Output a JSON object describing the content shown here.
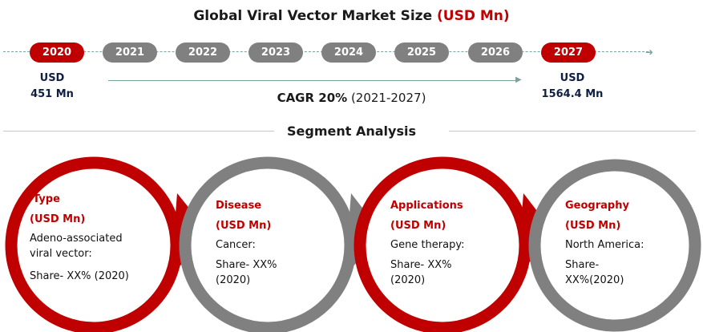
{
  "header": {
    "title_main": "Global Viral Vector Market Size",
    "title_unit": "(USD Mn)"
  },
  "timeline": {
    "years": [
      {
        "label": "2020",
        "highlight": true
      },
      {
        "label": "2021",
        "highlight": false
      },
      {
        "label": "2022",
        "highlight": false
      },
      {
        "label": "2023",
        "highlight": false
      },
      {
        "label": "2024",
        "highlight": false
      },
      {
        "label": "2025",
        "highlight": false
      },
      {
        "label": "2026",
        "highlight": false
      },
      {
        "label": "2027",
        "highlight": true
      }
    ],
    "start_value": {
      "line1": "USD",
      "line2": "451 Mn"
    },
    "end_value": {
      "line1": "USD",
      "line2": "1564.4 Mn"
    },
    "cagr_label": "CAGR 20%",
    "cagr_period": "(2021-2027)"
  },
  "segments": {
    "title": "Segment Analysis",
    "items": [
      {
        "heading": "Type",
        "unit": "(USD Mn)",
        "lines": [
          "Adeno-associated",
          "viral vector:",
          "",
          "Share- XX% (2020)"
        ]
      },
      {
        "heading": "Disease",
        "unit": "(USD Mn)",
        "lines": [
          "Cancer:",
          "",
          "Share- XX%",
          "(2020)"
        ]
      },
      {
        "heading": "Applications",
        "unit": "(USD Mn)",
        "lines": [
          "Gene therapy:",
          "",
          "Share- XX%",
          "(2020)"
        ]
      },
      {
        "heading": "Geography",
        "unit": "(USD Mn)",
        "lines": [
          "North America:",
          "",
          "Share-",
          "XX%(2020)"
        ]
      }
    ]
  },
  "colors": {
    "accent_red": "#c00000",
    "gray": "#808080",
    "navy": "#0f1f44",
    "teal_line": "#7aa39e"
  }
}
